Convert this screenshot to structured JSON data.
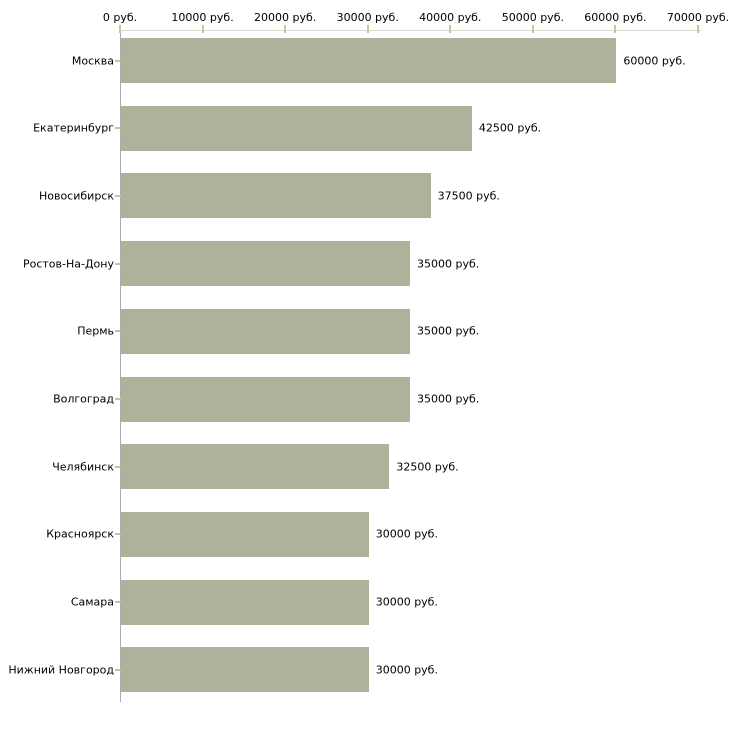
{
  "chart_data": {
    "type": "bar",
    "orientation": "horizontal",
    "title": "",
    "xlabel": "",
    "ylabel": "",
    "categories": [
      "Москва",
      "Екатеринбург",
      "Новосибирск",
      "Ростов-На-Дону",
      "Пермь",
      "Волгоград",
      "Челябинск",
      "Красноярск",
      "Самара",
      "Нижний Новгород"
    ],
    "values": [
      60000,
      42500,
      37500,
      35000,
      35000,
      35000,
      32500,
      30000,
      30000,
      30000
    ],
    "value_labels": [
      "60000 руб.",
      "42500 руб.",
      "37500 руб.",
      "35000 руб.",
      "35000 руб.",
      "35000 руб.",
      "32500 руб.",
      "30000 руб.",
      "30000 руб.",
      "30000 руб."
    ],
    "x_axis": {
      "position": "top",
      "min": 0,
      "max": 70000,
      "tick_values": [
        0,
        10000,
        20000,
        30000,
        40000,
        50000,
        60000,
        70000
      ],
      "tick_labels": [
        "0 руб.",
        "10000 руб.",
        "20000 руб.",
        "30000 руб.",
        "40000 руб.",
        "50000 руб.",
        "60000 руб.",
        "70000 руб."
      ]
    },
    "grid": false,
    "legend": false,
    "colors": {
      "bar_fill": "#adb39a",
      "x_axis_line": "#d9d9d3",
      "y_axis_line": "#ababab",
      "tick_mark": "#c5c599",
      "text": "#000000",
      "background": "#ffffff"
    }
  }
}
